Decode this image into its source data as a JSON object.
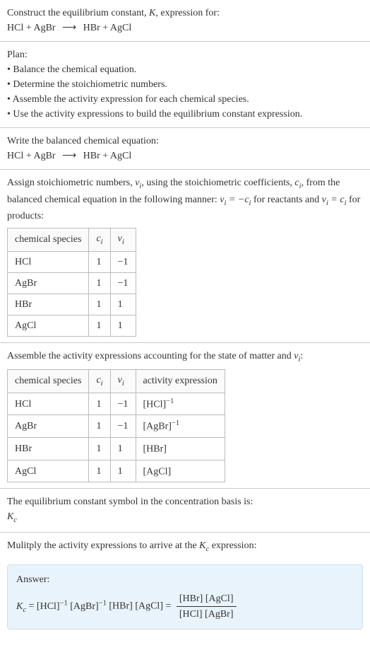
{
  "header": {
    "line1_pre": "Construct the equilibrium constant, ",
    "K": "K",
    "line1_post": ", expression for:",
    "reaction_lhs": "HCl + AgBr",
    "arrow": "⟶",
    "reaction_rhs": "HBr + AgCl"
  },
  "plan": {
    "title": "Plan:",
    "b1": "• Balance the chemical equation.",
    "b2": "• Determine the stoichiometric numbers.",
    "b3": "• Assemble the activity expression for each chemical species.",
    "b4": "• Use the activity expressions to build the equilibrium constant expression."
  },
  "balanced": {
    "title": "Write the balanced chemical equation:",
    "lhs": "HCl + AgBr",
    "arrow": "⟶",
    "rhs": "HBr + AgCl"
  },
  "stoich": {
    "text_pre": "Assign stoichiometric numbers, ",
    "nu": "ν",
    "i": "i",
    "text_mid1": ", using the stoichiometric coefficients, ",
    "c": "c",
    "text_mid2": ", from the balanced chemical equation in the following manner: ",
    "rel_react": " = −",
    "text_mid3": " for reactants and ",
    "rel_prod": " = ",
    "text_end": " for products:",
    "col1": "chemical species",
    "rows": [
      {
        "sp": "HCl",
        "c": "1",
        "nu": "−1"
      },
      {
        "sp": "AgBr",
        "c": "1",
        "nu": "−1"
      },
      {
        "sp": "HBr",
        "c": "1",
        "nu": "1"
      },
      {
        "sp": "AgCl",
        "c": "1",
        "nu": "1"
      }
    ]
  },
  "activity": {
    "title_pre": "Assemble the activity expressions accounting for the state of matter and ",
    "title_post": ":",
    "col1": "chemical species",
    "col4": "activity expression",
    "rows": [
      {
        "sp": "HCl",
        "c": "1",
        "nu": "−1",
        "act_base": "[HCl]",
        "act_sup": "−1"
      },
      {
        "sp": "AgBr",
        "c": "1",
        "nu": "−1",
        "act_base": "[AgBr]",
        "act_sup": "−1"
      },
      {
        "sp": "HBr",
        "c": "1",
        "nu": "1",
        "act_base": "[HBr]",
        "act_sup": ""
      },
      {
        "sp": "AgCl",
        "c": "1",
        "nu": "1",
        "act_base": "[AgCl]",
        "act_sup": ""
      }
    ]
  },
  "symbol": {
    "line": "The equilibrium constant symbol in the concentration basis is:",
    "K": "K",
    "csub": "c"
  },
  "multiply": {
    "text_pre": "Mulitply the activity expressions to arrive at the ",
    "text_post": " expression:"
  },
  "answer": {
    "label": "Answer:",
    "eq_sign": " = ",
    "t1": "[HCl]",
    "s1": "−1",
    "t2": "[AgBr]",
    "s2": "−1",
    "t3": "[HBr]",
    "t4": "[AgCl]",
    "frac_num": "[HBr] [AgCl]",
    "frac_den": "[HCl] [AgBr]"
  },
  "style": {
    "border_color": "#cccccc",
    "table_border": "#bbbbbb",
    "answer_bg": "#e9f3fb",
    "answer_border": "#c9dff0",
    "font_size_pt": 14
  }
}
